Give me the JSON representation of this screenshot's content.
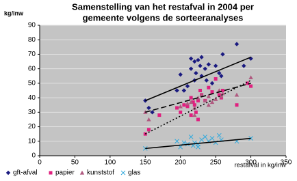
{
  "chart_data": {
    "type": "scatter",
    "title": [
      "Samenstelling van het restafval in 2004 per",
      "gemeente volgens de sorteeranalyses"
    ],
    "ylabel": "kg/inw",
    "xlabel": "restafval in kg/inw",
    "xlim": [
      0,
      350
    ],
    "xticks": [
      0,
      50,
      100,
      150,
      200,
      250,
      300,
      350
    ],
    "ylim": [
      0,
      90
    ],
    "yticks": [
      0,
      10,
      20,
      30,
      40,
      50,
      60,
      70,
      80,
      90
    ],
    "grid": true,
    "series": [
      {
        "name": "gft-afval",
        "color": "#1a1a80",
        "marker": "diamond",
        "x": [
          150,
          155,
          160,
          195,
          200,
          205,
          210,
          215,
          215,
          220,
          220,
          222,
          225,
          228,
          230,
          230,
          235,
          237,
          240,
          245,
          250,
          255,
          258,
          260,
          280,
          290,
          300
        ],
        "values": [
          38,
          33,
          30,
          45,
          56,
          45,
          48,
          67,
          60,
          65,
          52,
          57,
          66,
          62,
          68,
          55,
          60,
          52,
          63,
          50,
          62,
          57,
          55,
          70,
          77,
          62,
          67
        ],
        "trend": {
          "x": [
            150,
            300
          ],
          "y": [
            38,
            68
          ],
          "dash": "solid"
        }
      },
      {
        "name": "papier",
        "color": "#e0207f",
        "marker": "square",
        "x": [
          150,
          155,
          170,
          195,
          200,
          205,
          210,
          215,
          218,
          220,
          222,
          225,
          228,
          230,
          235,
          240,
          245,
          250,
          255,
          258,
          260,
          280,
          295,
          300,
          215,
          225
        ],
        "values": [
          15,
          18,
          28,
          33,
          30,
          35,
          34,
          40,
          37,
          35,
          30,
          38,
          45,
          42,
          38,
          47,
          44,
          53,
          42,
          40,
          45,
          35,
          50,
          48,
          28,
          25
        ],
        "trend": {
          "x": [
            150,
            300
          ],
          "y": [
            15,
            52
          ],
          "dash": "dotted"
        }
      },
      {
        "name": "kunststof",
        "color": "#b05a80",
        "marker": "triangle",
        "x": [
          150,
          155,
          200,
          210,
          215,
          220,
          225,
          230,
          235,
          240,
          245,
          250,
          255,
          258,
          260,
          280,
          300,
          240,
          220
        ],
        "values": [
          30,
          25,
          34,
          36,
          37,
          33,
          40,
          42,
          38,
          41,
          37,
          39,
          45,
          41,
          43,
          42,
          54,
          35,
          28
        ],
        "trend": {
          "x": [
            150,
            300
          ],
          "y": [
            30,
            50
          ],
          "dash": "dashed"
        }
      },
      {
        "name": "glas",
        "color": "#33aadd",
        "marker": "cross",
        "x": [
          150,
          200,
          205,
          210,
          215,
          218,
          220,
          225,
          230,
          235,
          240,
          245,
          250,
          255,
          258,
          280,
          300,
          195,
          225
        ],
        "values": [
          5,
          6,
          9,
          8,
          13,
          7,
          9,
          6,
          11,
          13,
          10,
          12,
          9,
          14,
          11,
          10,
          12,
          10,
          8
        ],
        "trend": {
          "x": [
            150,
            300
          ],
          "y": [
            5,
            12
          ],
          "dash": "solid"
        }
      }
    ]
  }
}
